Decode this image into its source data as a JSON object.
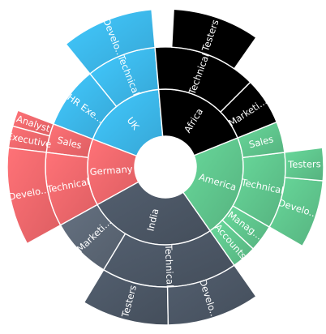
{
  "chart_data": {
    "type": "sunburst",
    "title": "",
    "levels": 3,
    "label_color": "#ffffff",
    "hole_color": "#ffffff",
    "segments": [
      {
        "label": "UK",
        "level": 1,
        "start": 0,
        "end": 64,
        "color": "#3BB4E8"
      },
      {
        "label": "Technical",
        "level": 2,
        "start": 0,
        "end": 34,
        "color": "#3BB4E8"
      },
      {
        "label": "Develo...",
        "level": 3,
        "start": 0,
        "end": 34,
        "color": "#3BB4E8"
      },
      {
        "label": "HR Exe...",
        "level": 2,
        "start": 34,
        "end": 64,
        "color": "#3BB4E8"
      },
      {
        "label": "Germany",
        "level": 1,
        "start": 64,
        "end": 114,
        "color": "#F0666A"
      },
      {
        "label": "Sales",
        "level": 2,
        "start": 64,
        "end": 78,
        "color": "#F0666A"
      },
      {
        "label": "Analyst",
        "level": 3,
        "start": 64,
        "end": 70,
        "color": "#F0666A"
      },
      {
        "label": "Executive",
        "level": 3,
        "start": 70,
        "end": 78,
        "color": "#F0666A"
      },
      {
        "label": "Technical",
        "level": 2,
        "start": 78,
        "end": 114,
        "color": "#F0666A"
      },
      {
        "label": "Develo...",
        "level": 3,
        "start": 78,
        "end": 114,
        "color": "#F0666A"
      },
      {
        "label": "India",
        "level": 1,
        "start": 114,
        "end": 210,
        "color": "#4A5563"
      },
      {
        "label": "Marketi...",
        "level": 2,
        "start": 114,
        "end": 144,
        "color": "#5A6573"
      },
      {
        "label": "Technical",
        "level": 2,
        "start": 144,
        "end": 210,
        "color": "#4A5563"
      },
      {
        "label": "Testers",
        "level": 3,
        "start": 144,
        "end": 176,
        "color": "#4A5563"
      },
      {
        "label": "Develo...",
        "level": 3,
        "start": 176,
        "end": 210,
        "color": "#4A5563"
      },
      {
        "label": "America",
        "level": 1,
        "start": 210,
        "end": 287,
        "color": "#5DC28A"
      },
      {
        "label": "Accounts",
        "level": 2,
        "start": 210,
        "end": 222,
        "color": "#5DC28A"
      },
      {
        "label": "Manag...",
        "level": 2,
        "start": 222,
        "end": 235,
        "color": "#5DC28A"
      },
      {
        "label": "Technical",
        "level": 2,
        "start": 235,
        "end": 272,
        "color": "#5DC28A"
      },
      {
        "label": "Develo...",
        "level": 3,
        "start": 235,
        "end": 260,
        "color": "#5DC28A"
      },
      {
        "label": "Testers",
        "level": 3,
        "start": 260,
        "end": 272,
        "color": "#5DC28A"
      },
      {
        "label": "Sales",
        "level": 2,
        "start": 272,
        "end": 287,
        "color": "#5DC28A"
      },
      {
        "label": "Africa",
        "level": 1,
        "start": 287,
        "end": 360,
        "color": "#000000"
      },
      {
        "label": "Marketi...",
        "level": 2,
        "start": 287,
        "end": 310,
        "color": "#000000"
      },
      {
        "label": "Technical",
        "level": 2,
        "start": 310,
        "end": 360,
        "color": "#000000"
      },
      {
        "label": "Testers",
        "level": 3,
        "start": 320,
        "end": 352,
        "color": "#000000"
      }
    ]
  }
}
